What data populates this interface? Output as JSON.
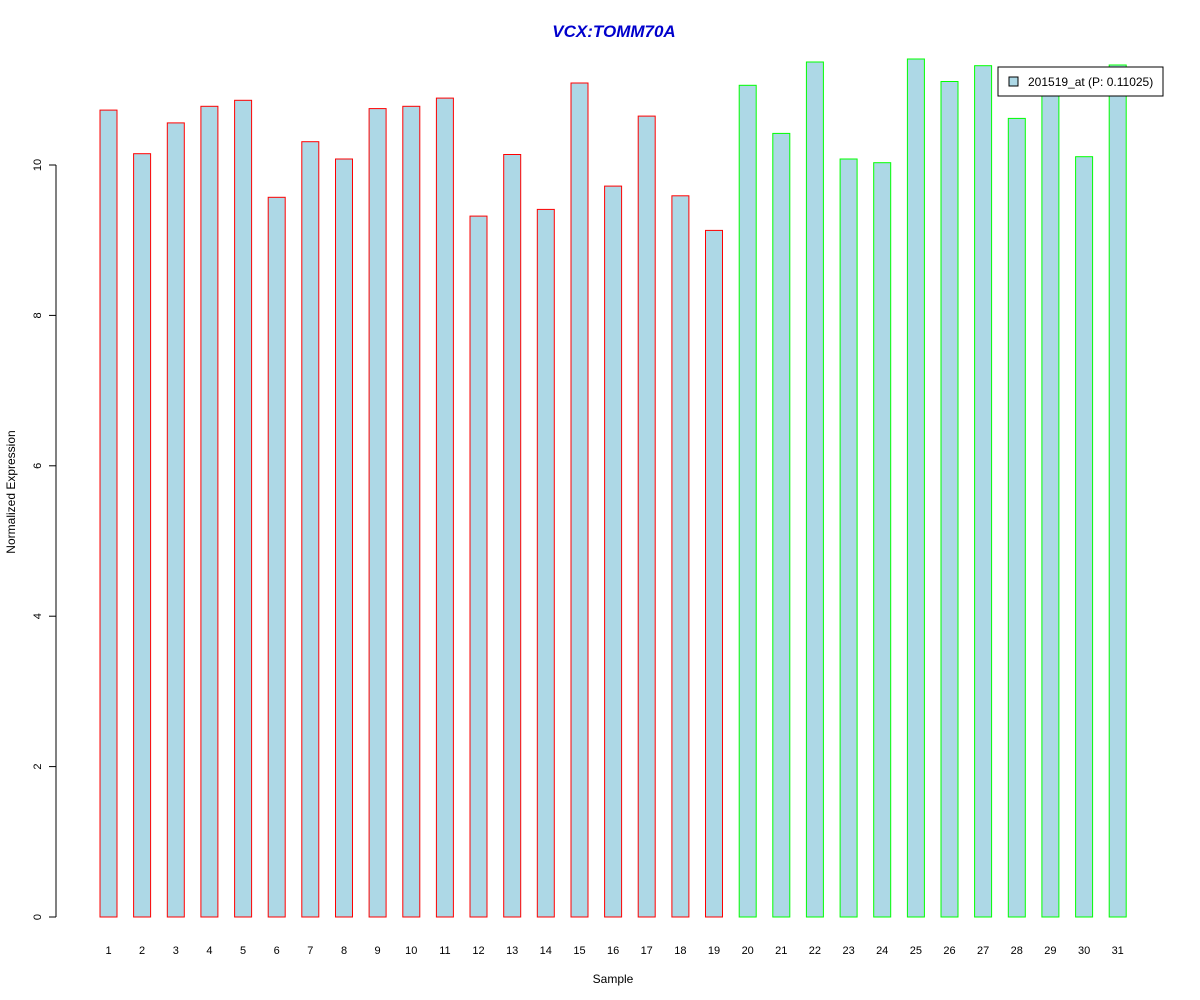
{
  "chart_data": {
    "type": "bar",
    "title": "VCX:TOMM70A",
    "xlabel": "Sample",
    "ylabel": "Normalized Expression",
    "categories": [
      "1",
      "2",
      "3",
      "4",
      "5",
      "6",
      "7",
      "8",
      "9",
      "10",
      "11",
      "12",
      "13",
      "14",
      "15",
      "16",
      "17",
      "18",
      "19",
      "20",
      "21",
      "22",
      "23",
      "24",
      "25",
      "26",
      "27",
      "28",
      "29",
      "30",
      "31"
    ],
    "series": [
      {
        "name": "201519_at (P: 0.11025)",
        "values": [
          10.73,
          10.15,
          10.56,
          10.78,
          10.86,
          9.57,
          10.31,
          10.08,
          10.75,
          10.78,
          10.89,
          9.32,
          10.14,
          9.41,
          11.09,
          9.72,
          10.65,
          9.59,
          9.13,
          11.06,
          10.42,
          11.37,
          10.08,
          10.03,
          11.41,
          11.11,
          11.32,
          10.62,
          11.0,
          10.11,
          11.33
        ]
      }
    ],
    "group_of_bar": [
      "A",
      "A",
      "A",
      "A",
      "A",
      "A",
      "A",
      "A",
      "A",
      "A",
      "A",
      "A",
      "A",
      "A",
      "A",
      "A",
      "A",
      "A",
      "A",
      "B",
      "B",
      "B",
      "B",
      "B",
      "B",
      "B",
      "B",
      "B",
      "B",
      "B",
      "B"
    ],
    "ylim": [
      0,
      11.45
    ],
    "yticks": [
      0,
      2,
      4,
      6,
      8,
      10
    ],
    "grid": false,
    "legend_position": "top-right",
    "colors": {
      "bar_fill": "#add8e6",
      "group_A_outline": "#ff0000",
      "group_B_outline": "#00ff00",
      "title": "#0000cc",
      "axis": "#000000"
    }
  }
}
